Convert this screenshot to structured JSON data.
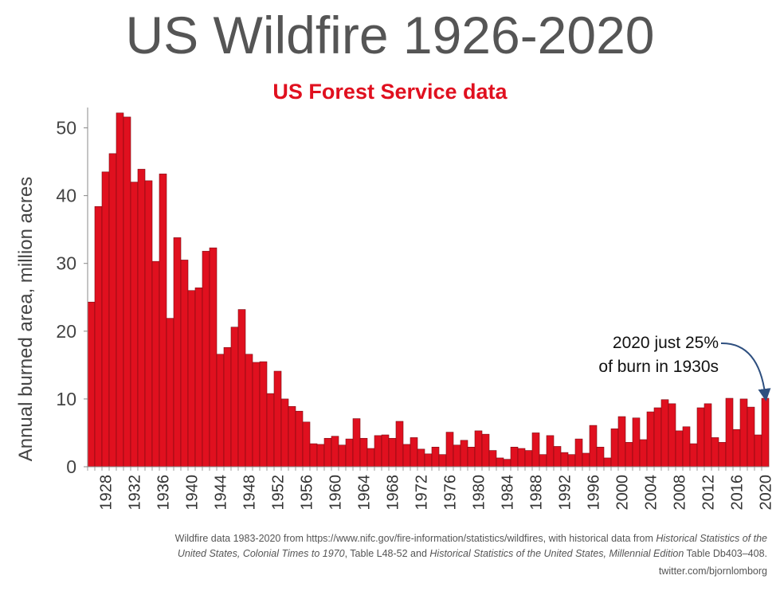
{
  "title": "US Wildfire 1926-2020",
  "subtitle": "US Forest Service data",
  "accent_color": "#e0101f",
  "title_color": "#555555",
  "annotation_color": "#2e4f7f",
  "chart_data": {
    "type": "bar",
    "title": "US Wildfire 1926-2020",
    "subtitle": "US Forest Service data",
    "xlabel": "",
    "ylabel": "Annual burned area, million acres",
    "ylim": [
      0,
      53
    ],
    "yticks": [
      0,
      10,
      20,
      30,
      40,
      50
    ],
    "xtick_labels": [
      "1928",
      "1932",
      "1936",
      "1940",
      "1944",
      "1948",
      "1952",
      "1956",
      "1960",
      "1964",
      "1968",
      "1972",
      "1976",
      "1980",
      "1984",
      "1988",
      "1992",
      "1996",
      "2000",
      "2004",
      "2008",
      "2012",
      "2016",
      "2020"
    ],
    "years": [
      1926,
      1927,
      1928,
      1929,
      1930,
      1931,
      1932,
      1933,
      1934,
      1935,
      1936,
      1937,
      1938,
      1939,
      1940,
      1941,
      1942,
      1943,
      1944,
      1945,
      1946,
      1947,
      1948,
      1949,
      1950,
      1951,
      1952,
      1953,
      1954,
      1955,
      1956,
      1957,
      1958,
      1959,
      1960,
      1961,
      1962,
      1963,
      1964,
      1965,
      1966,
      1967,
      1968,
      1969,
      1970,
      1971,
      1972,
      1973,
      1974,
      1975,
      1976,
      1977,
      1978,
      1979,
      1980,
      1981,
      1982,
      1983,
      1984,
      1985,
      1986,
      1987,
      1988,
      1989,
      1990,
      1991,
      1992,
      1993,
      1994,
      1995,
      1996,
      1997,
      1998,
      1999,
      2000,
      2001,
      2002,
      2003,
      2004,
      2005,
      2006,
      2007,
      2008,
      2009,
      2010,
      2011,
      2012,
      2013,
      2014,
      2015,
      2016,
      2017,
      2018,
      2019,
      2020
    ],
    "values": [
      24.3,
      38.4,
      43.5,
      46.2,
      52.2,
      51.6,
      42.0,
      43.9,
      42.2,
      30.3,
      43.2,
      21.9,
      33.8,
      30.5,
      26.0,
      26.4,
      31.8,
      32.3,
      16.6,
      17.6,
      20.6,
      23.2,
      16.6,
      15.4,
      15.5,
      10.8,
      14.1,
      10.0,
      8.9,
      8.2,
      6.6,
      3.4,
      3.3,
      4.2,
      4.5,
      3.2,
      4.1,
      7.1,
      4.2,
      2.7,
      4.6,
      4.7,
      4.2,
      6.7,
      3.3,
      4.3,
      2.6,
      1.9,
      2.9,
      1.8,
      5.1,
      3.2,
      3.9,
      2.9,
      5.3,
      4.8,
      2.4,
      1.3,
      1.1,
      2.9,
      2.7,
      2.4,
      5.0,
      1.8,
      4.6,
      3.0,
      2.1,
      1.8,
      4.1,
      2.0,
      6.1,
      2.9,
      1.3,
      5.6,
      7.4,
      3.6,
      7.2,
      4.0,
      8.1,
      8.7,
      9.9,
      9.3,
      5.3,
      5.9,
      3.4,
      8.7,
      9.3,
      4.3,
      3.6,
      10.1,
      5.5,
      10.0,
      8.8,
      4.7,
      10.1
    ],
    "annotations": [
      {
        "text_lines": [
          "2020 just 25%",
          "of burn in 1930s"
        ],
        "target_year": 2020
      }
    ],
    "grid": false,
    "legend": "none"
  },
  "footer": {
    "source_lines": [
      [
        {
          "t": "Wildfire data 1983-2020 from https://www.nifc.gov/fire-information/statistics/wildfires, with historical data from ",
          "i": false
        },
        {
          "t": "Historical Statistics of the",
          "i": true
        }
      ],
      [
        {
          "t": "United States, Colonial Times to 1970",
          "i": true
        },
        {
          "t": ", Table L48-52 and ",
          "i": false
        },
        {
          "t": "Historical Statistics of the United States, Millennial Edition",
          "i": true
        },
        {
          "t": " Table Db403–408.",
          "i": false
        }
      ]
    ],
    "credit": "twitter.com/bjornlomborg"
  }
}
